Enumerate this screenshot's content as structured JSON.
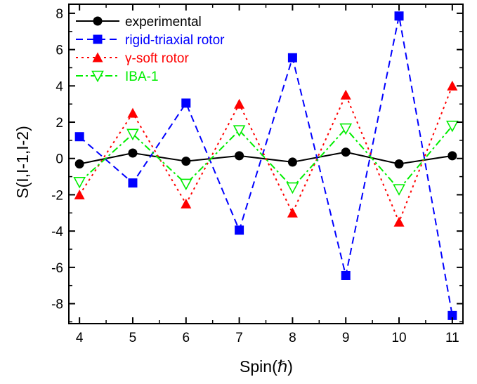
{
  "chart_data": {
    "type": "line",
    "xlabel": "Spin(ℏ)",
    "ylabel": "S(I,I-1,I-2)",
    "xlim": [
      3.8,
      11.2
    ],
    "ylim": [
      -9.1,
      8.5
    ],
    "x_ticks": [
      4,
      5,
      6,
      7,
      8,
      9,
      10,
      11
    ],
    "x_tick_labels": [
      "4",
      "5",
      "6",
      "7",
      "8",
      "9",
      "10",
      "11"
    ],
    "y_ticks": [
      -8,
      -6,
      -4,
      -2,
      0,
      2,
      4,
      6,
      8
    ],
    "y_tick_labels": [
      "-8",
      "-6",
      "-4",
      "-2",
      "0",
      "2",
      "4",
      "6",
      "8"
    ],
    "x": [
      4,
      5,
      6,
      7,
      8,
      9,
      10,
      11
    ],
    "grid": false,
    "legend_position": "top-left",
    "series": [
      {
        "name": "experimental",
        "color": "#000000",
        "dash": "solid",
        "marker": "circle",
        "values": [
          -0.3,
          0.3,
          -0.15,
          0.15,
          -0.2,
          0.35,
          -0.3,
          0.15
        ]
      },
      {
        "name": "rigid-triaxial rotor",
        "color": "#0000ff",
        "dash": "dash",
        "marker": "square",
        "values": [
          1.2,
          -1.35,
          3.05,
          -3.95,
          5.55,
          -6.45,
          7.85,
          -8.65
        ]
      },
      {
        "name": "γ-soft rotor",
        "color": "#ff0000",
        "dash": "dot",
        "marker": "triangle-up",
        "values": [
          -2.0,
          2.5,
          -2.5,
          3.0,
          -3.0,
          3.5,
          -3.5,
          4.0
        ]
      },
      {
        "name": "IBA-1",
        "color": "#00ee00",
        "dash": "dashdot",
        "marker": "triangle-down-open",
        "values": [
          -1.3,
          1.35,
          -1.4,
          1.55,
          -1.6,
          1.65,
          -1.7,
          1.8
        ]
      }
    ]
  }
}
